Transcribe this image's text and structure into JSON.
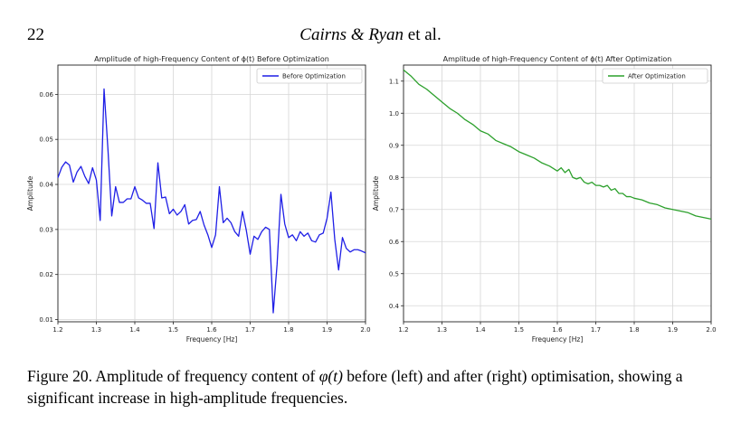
{
  "header": {
    "page_number": "22",
    "authors_italic": "Cairns & Ryan",
    "authors_suffix": " et al."
  },
  "caption": {
    "label": "Figure 20.",
    "text_before_math": " Amplitude of frequency content of ",
    "math": "φ(t)",
    "text_after_math": " before (left) and after (right) optimisation, showing a significant increase in high-amplitude frequencies."
  },
  "chart_data": [
    {
      "type": "line",
      "title": "Amplitude of high-Frequency Content of ϕ(t) Before Optimization",
      "xlabel": "Frequency [Hz]",
      "ylabel": "Amplitude",
      "xlim": [
        1.2,
        2.0
      ],
      "ylim": [
        0.0095,
        0.0665
      ],
      "xticks": [
        "1.2",
        "1.3",
        "1.4",
        "1.5",
        "1.6",
        "1.7",
        "1.8",
        "1.9",
        "2.0"
      ],
      "xtick_values": [
        1.2,
        1.3,
        1.4,
        1.5,
        1.6,
        1.7,
        1.8,
        1.9,
        2.0
      ],
      "yticks": [
        "0.01",
        "0.02",
        "0.03",
        "0.04",
        "0.05",
        "0.06"
      ],
      "ytick_values": [
        0.01,
        0.02,
        0.03,
        0.04,
        0.05,
        0.06
      ],
      "grid": true,
      "legend_position": "top-right",
      "color": "#1f1fe6",
      "series": [
        {
          "name": "Before Optimization",
          "x": [
            1.2,
            1.21,
            1.22,
            1.23,
            1.24,
            1.25,
            1.26,
            1.27,
            1.28,
            1.29,
            1.3,
            1.31,
            1.32,
            1.33,
            1.34,
            1.35,
            1.36,
            1.37,
            1.38,
            1.39,
            1.4,
            1.41,
            1.42,
            1.43,
            1.44,
            1.45,
            1.46,
            1.47,
            1.48,
            1.49,
            1.5,
            1.51,
            1.52,
            1.53,
            1.54,
            1.55,
            1.56,
            1.57,
            1.58,
            1.59,
            1.6,
            1.61,
            1.62,
            1.63,
            1.64,
            1.65,
            1.66,
            1.67,
            1.68,
            1.69,
            1.7,
            1.71,
            1.72,
            1.73,
            1.74,
            1.75,
            1.76,
            1.77,
            1.78,
            1.79,
            1.8,
            1.81,
            1.82,
            1.83,
            1.84,
            1.85,
            1.86,
            1.87,
            1.88,
            1.89,
            1.9,
            1.91,
            1.92,
            1.93,
            1.94,
            1.95,
            1.96,
            1.97,
            1.98,
            1.99,
            2.0
          ],
          "values": [
            0.0415,
            0.0438,
            0.045,
            0.0443,
            0.0405,
            0.0428,
            0.044,
            0.0418,
            0.0402,
            0.0437,
            0.041,
            0.032,
            0.0612,
            0.048,
            0.033,
            0.0395,
            0.036,
            0.036,
            0.0368,
            0.0368,
            0.0395,
            0.037,
            0.0365,
            0.0358,
            0.0358,
            0.0302,
            0.0448,
            0.037,
            0.0372,
            0.0335,
            0.0345,
            0.0332,
            0.034,
            0.0355,
            0.0312,
            0.032,
            0.0322,
            0.034,
            0.031,
            0.0288,
            0.026,
            0.0288,
            0.0395,
            0.0315,
            0.0325,
            0.0315,
            0.0295,
            0.0285,
            0.034,
            0.0298,
            0.0245,
            0.0285,
            0.0278,
            0.0295,
            0.0305,
            0.03,
            0.0115,
            0.0222,
            0.0378,
            0.0312,
            0.0282,
            0.0288,
            0.0275,
            0.0295,
            0.0285,
            0.0292,
            0.0275,
            0.0272,
            0.0288,
            0.0292,
            0.0325,
            0.0383,
            0.0278,
            0.021,
            0.0282,
            0.0258,
            0.025,
            0.0255,
            0.0255,
            0.0252,
            0.0248
          ]
        }
      ]
    },
    {
      "type": "line",
      "title": "Amplitude of high-Frequency Content of ϕ(t) After Optimization",
      "xlabel": "Frequency [Hz]",
      "ylabel": "Amplitude",
      "xlim": [
        1.2,
        2.0
      ],
      "ylim": [
        0.35,
        1.15
      ],
      "xticks": [
        "1.2",
        "1.3",
        "1.4",
        "1.5",
        "1.6",
        "1.7",
        "1.8",
        "1.9",
        "2.0"
      ],
      "xtick_values": [
        1.2,
        1.3,
        1.4,
        1.5,
        1.6,
        1.7,
        1.8,
        1.9,
        2.0
      ],
      "yticks": [
        "0.4",
        "0.5",
        "0.6",
        "0.7",
        "0.8",
        "0.9",
        "1.0",
        "1.1"
      ],
      "ytick_values": [
        0.4,
        0.5,
        0.6,
        0.7,
        0.8,
        0.9,
        1.0,
        1.1
      ],
      "grid": true,
      "legend_position": "top-right",
      "color": "#2ca02c",
      "series": [
        {
          "name": "After Optimization",
          "x": [
            1.2,
            1.22,
            1.24,
            1.26,
            1.28,
            1.3,
            1.32,
            1.34,
            1.36,
            1.38,
            1.4,
            1.42,
            1.44,
            1.46,
            1.48,
            1.5,
            1.52,
            1.54,
            1.56,
            1.58,
            1.6,
            1.61,
            1.62,
            1.63,
            1.64,
            1.65,
            1.66,
            1.67,
            1.68,
            1.69,
            1.7,
            1.71,
            1.72,
            1.73,
            1.74,
            1.75,
            1.76,
            1.77,
            1.78,
            1.79,
            1.8,
            1.82,
            1.84,
            1.86,
            1.88,
            1.9,
            1.92,
            1.94,
            1.96,
            1.98,
            2.0
          ],
          "values": [
            1.135,
            1.115,
            1.09,
            1.075,
            1.055,
            1.035,
            1.015,
            1.0,
            0.98,
            0.965,
            0.945,
            0.935,
            0.915,
            0.905,
            0.895,
            0.88,
            0.87,
            0.86,
            0.845,
            0.835,
            0.82,
            0.83,
            0.815,
            0.825,
            0.8,
            0.795,
            0.8,
            0.785,
            0.78,
            0.785,
            0.775,
            0.775,
            0.77,
            0.775,
            0.76,
            0.765,
            0.75,
            0.75,
            0.74,
            0.74,
            0.735,
            0.73,
            0.72,
            0.715,
            0.705,
            0.7,
            0.695,
            0.69,
            0.68,
            0.675,
            0.67
          ]
        }
      ]
    }
  ]
}
